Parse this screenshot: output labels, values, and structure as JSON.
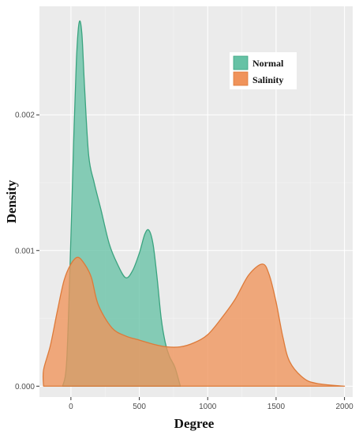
{
  "chart_data": {
    "type": "area",
    "title": "",
    "xlabel": "Degree",
    "ylabel": "Density",
    "xlim": [
      -230,
      2060
    ],
    "ylim": [
      -8e-05,
      0.0028
    ],
    "x_ticks": [
      0,
      500,
      1000,
      1500,
      2000
    ],
    "x_tick_labels": [
      "0",
      "500",
      "1000",
      "1500",
      "2000"
    ],
    "y_ticks": [
      0,
      0.001,
      0.002
    ],
    "y_tick_labels": [
      "0.000",
      "0.001",
      "0.002"
    ],
    "grid": true,
    "legend": {
      "position": "top-right",
      "entries": [
        "Normal",
        "Salinity"
      ]
    },
    "series": [
      {
        "name": "Normal",
        "color": "#66c2a5",
        "points": [
          [
            -60,
            0.0
          ],
          [
            -30,
            0.0002
          ],
          [
            0,
            0.0011
          ],
          [
            20,
            0.0018
          ],
          [
            40,
            0.0024
          ],
          [
            60,
            0.00268
          ],
          [
            80,
            0.0026
          ],
          [
            100,
            0.0022
          ],
          [
            130,
            0.0017
          ],
          [
            170,
            0.0015
          ],
          [
            220,
            0.0013
          ],
          [
            280,
            0.00105
          ],
          [
            340,
            0.0009
          ],
          [
            400,
            0.0008
          ],
          [
            450,
            0.00085
          ],
          [
            500,
            0.00098
          ],
          [
            540,
            0.00112
          ],
          [
            570,
            0.00115
          ],
          [
            600,
            0.00105
          ],
          [
            630,
            0.0008
          ],
          [
            660,
            0.0005
          ],
          [
            690,
            0.00032
          ],
          [
            720,
            0.00022
          ],
          [
            760,
            0.00014
          ],
          [
            800,
            0.0
          ]
        ]
      },
      {
        "name": "Salinity",
        "color": "#f0935a",
        "points": [
          [
            -200,
            0.0
          ],
          [
            -200,
            0.00012
          ],
          [
            -150,
            0.0003
          ],
          [
            -100,
            0.00055
          ],
          [
            -50,
            0.00078
          ],
          [
            0,
            0.0009
          ],
          [
            50,
            0.00095
          ],
          [
            100,
            0.0009
          ],
          [
            150,
            0.0008
          ],
          [
            200,
            0.0006
          ],
          [
            300,
            0.00043
          ],
          [
            400,
            0.00037
          ],
          [
            500,
            0.00034
          ],
          [
            600,
            0.00031
          ],
          [
            700,
            0.00029
          ],
          [
            800,
            0.00029
          ],
          [
            900,
            0.00032
          ],
          [
            1000,
            0.00038
          ],
          [
            1100,
            0.0005
          ],
          [
            1200,
            0.00064
          ],
          [
            1300,
            0.00082
          ],
          [
            1400,
            0.0009
          ],
          [
            1450,
            0.00082
          ],
          [
            1500,
            0.00062
          ],
          [
            1550,
            0.00036
          ],
          [
            1600,
            0.00018
          ],
          [
            1700,
            6e-05
          ],
          [
            1800,
            2e-05
          ],
          [
            2000,
            0.0
          ]
        ]
      }
    ]
  }
}
